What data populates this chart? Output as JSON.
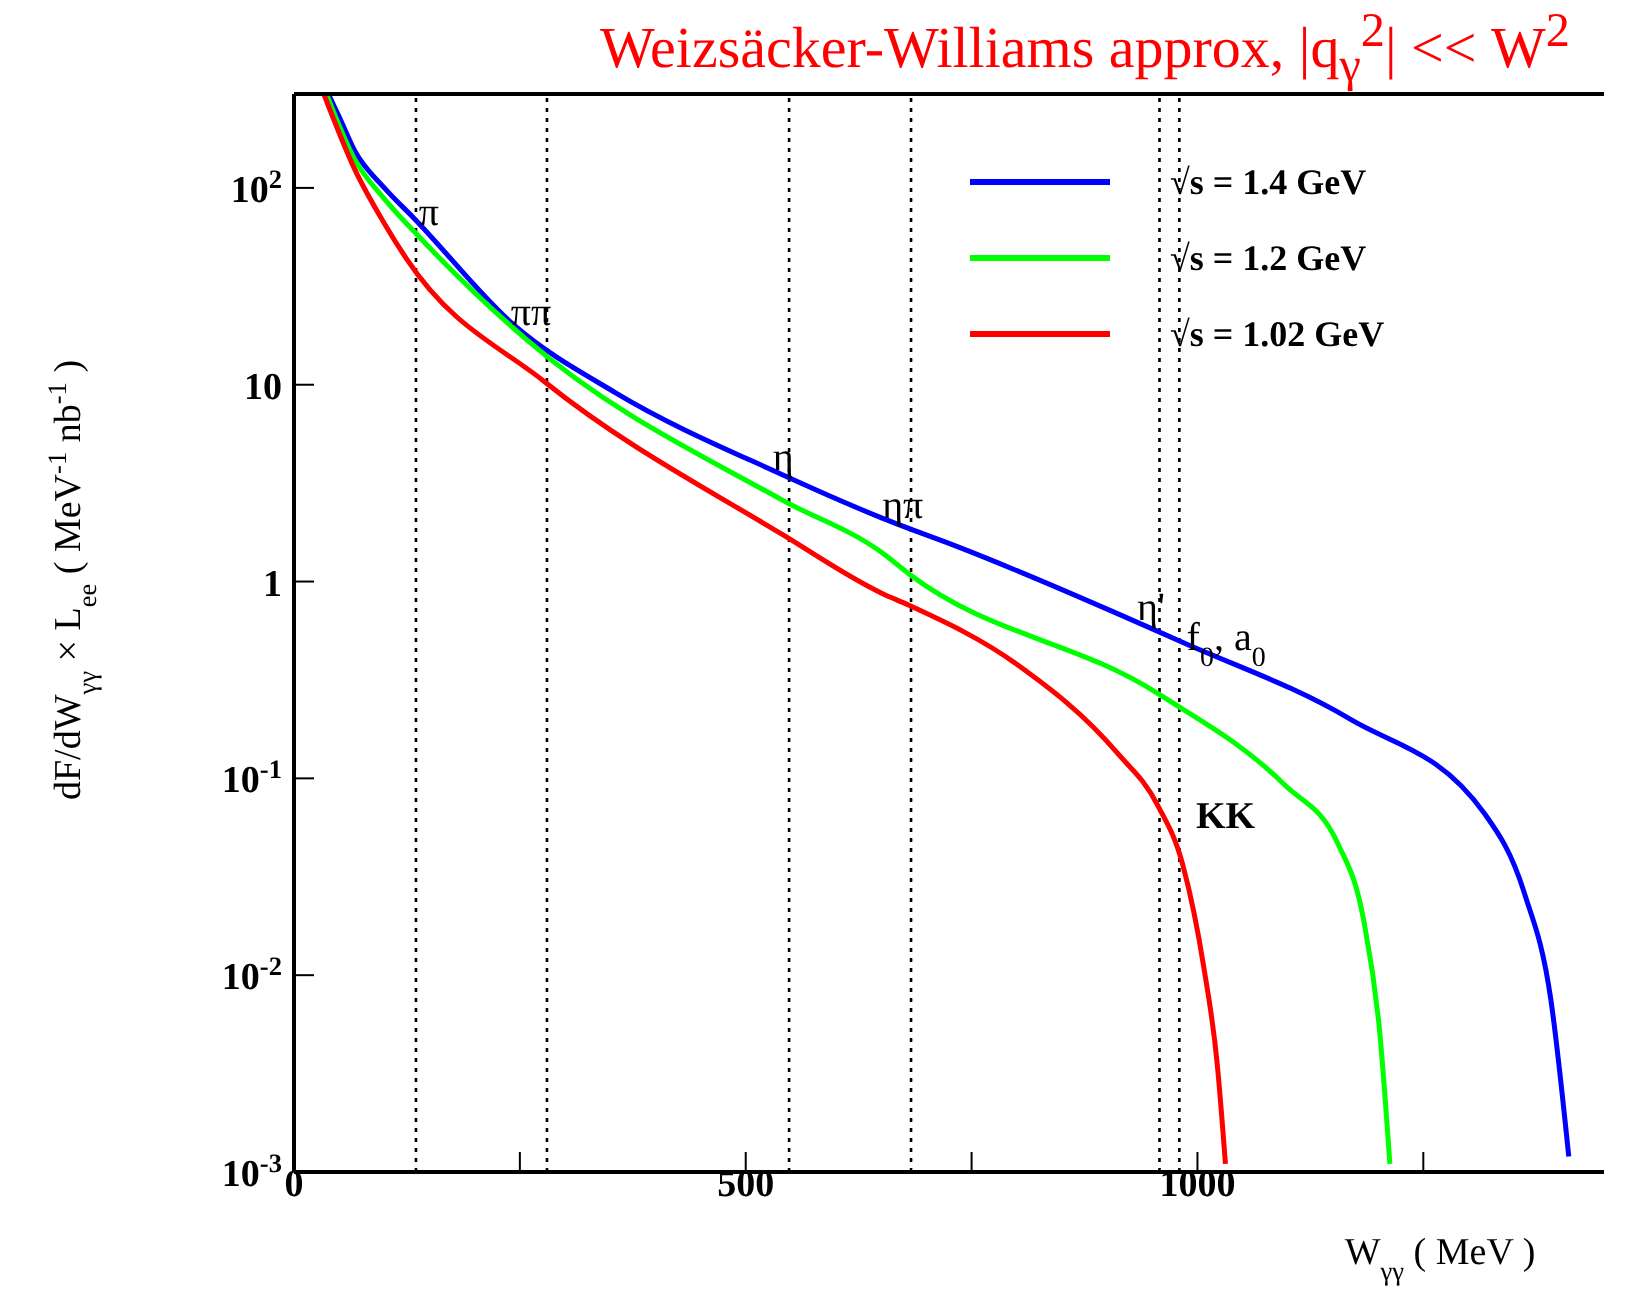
{
  "chart_data": {
    "type": "line",
    "title": "Weizsäcker-Williams approx, |q$_{γ}$$^{2}$| << W$^{2}$",
    "xlabel": "W$_{γγ}$ ( MeV )",
    "ylabel": "dF/dW$_{γγ}$ × L$_{ee}$  ( MeV$^{-1}$ nb$^{-1}$ )",
    "log": "y",
    "legend": "top right",
    "marker": "none",
    "line_style": "solid",
    "xlim": [
      0,
      1450
    ],
    "xticks": [
      0,
      {
        "value": 250,
        "label": null
      },
      500,
      {
        "value": 750,
        "label": null
      },
      1000,
      {
        "value": 1250,
        "label": null
      }
    ],
    "ylim": [
      0.001,
      300
    ],
    "yticks": [
      {
        "value": 100,
        "label": "10$^{2}$"
      },
      10,
      1,
      {
        "value": 0.1,
        "label": "10$^{-1}$"
      },
      {
        "value": 0.01,
        "label": "10$^{-2}$"
      },
      {
        "value": 0.001,
        "label": "10$^{-3}$"
      }
    ],
    "series": [
      {
        "name": "√s = 1.4 GeV",
        "color": "#0000ff",
        "x": [
          38,
          50,
          67,
          100,
          133,
          244,
          356,
          540,
          651,
          740,
          984,
          1169,
          1318,
          1362,
          1391,
          1411
        ],
        "values": [
          300,
          230,
          155,
          100,
          70,
          20,
          9.1,
          3.5,
          2.1,
          1.47,
          0.49,
          0.2,
          0.066,
          0.026,
          0.0076,
          0.0012
        ]
      },
      {
        "name": "√s = 1.2 GeV",
        "color": "#00ff00",
        "x": [
          36,
          67,
          100,
          133,
          257,
          540,
          651,
          680,
          956,
          1096,
          1156,
          1184,
          1202,
          1213
        ],
        "values": [
          300,
          140,
          88,
          60,
          17,
          2.6,
          1.4,
          1.1,
          0.27,
          0.093,
          0.046,
          0.019,
          0.005,
          0.0011
        ]
      },
      {
        "name": "√s = 1.02 GeV",
        "color": "#ff0000",
        "x": [
          33,
          67,
          100,
          124,
          278,
          540,
          651,
          680,
          800,
          911,
          956,
          984,
          1007,
          1022,
          1031
        ],
        "values": [
          300,
          125,
          66,
          44,
          10.3,
          1.74,
          0.87,
          0.76,
          0.38,
          0.135,
          0.073,
          0.036,
          0.011,
          0.0035,
          0.0011
        ]
      }
    ],
    "ref_lines": [
      {
        "axis": "x",
        "value": 135,
        "color": "#000000",
        "line_style": "dotted"
      },
      {
        "axis": "x",
        "value": 280,
        "color": "#000000",
        "line_style": "dotted"
      },
      {
        "axis": "x",
        "value": 548,
        "color": "#000000",
        "line_style": "dotted"
      },
      {
        "axis": "x",
        "value": 683,
        "color": "#000000",
        "line_style": "dotted"
      },
      {
        "axis": "x",
        "value": 958,
        "color": "#000000",
        "line_style": "dotted"
      },
      {
        "axis": "x",
        "value": 980,
        "color": "#000000",
        "line_style": "dotted"
      }
    ],
    "annotations": [
      {
        "text": "π",
        "x": 138,
        "y": 65
      },
      {
        "text": "ππ",
        "x": 240,
        "y": 20
      },
      {
        "text": "η",
        "x": 530,
        "y": 3.7
      },
      {
        "text": "ηπ",
        "x": 651,
        "y": 2.1
      },
      {
        "text": "η'",
        "x": 933,
        "y": 0.64
      },
      {
        "text": "f$_{0}$, a$_{0}$",
        "x": 988,
        "y": 0.45
      },
      "KK"
    ]
  }
}
